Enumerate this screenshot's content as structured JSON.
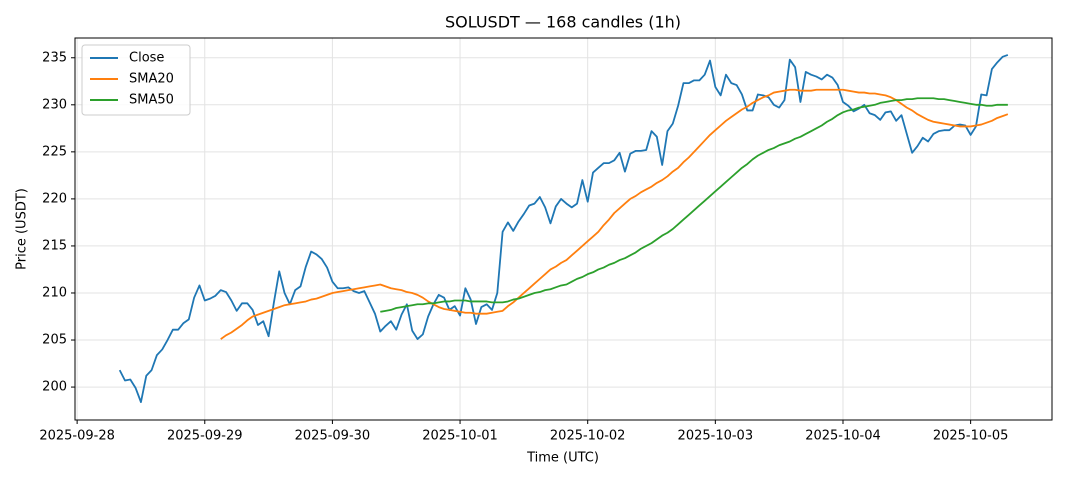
{
  "chart_data": {
    "type": "line",
    "title": "SOLUSDT — 168 candles (1h)",
    "x_label": "Time (UTC)",
    "y_label": "Price (USDT)",
    "xlim": [
      -8.4,
      175.3
    ],
    "xticks": [
      {
        "value": -8,
        "label": "2025-09-28"
      },
      {
        "value": 16,
        "label": "2025-09-29"
      },
      {
        "value": 40,
        "label": "2025-09-30"
      },
      {
        "value": 64,
        "label": "2025-10-01"
      },
      {
        "value": 88,
        "label": "2025-10-02"
      },
      {
        "value": 112,
        "label": "2025-10-03"
      },
      {
        "value": 136,
        "label": "2025-10-04"
      },
      {
        "value": 160,
        "label": "2025-10-05"
      }
    ],
    "ylim": [
      196.5,
      237.1
    ],
    "yticks": [
      200,
      205,
      210,
      215,
      220,
      225,
      230,
      235
    ],
    "grid": true,
    "legend": "upper-left",
    "series": [
      {
        "name": "Close",
        "color": "#1f77b4",
        "values": [
          201.8,
          200.7,
          200.8,
          199.9,
          198.4,
          201.2,
          201.8,
          203.4,
          204.0,
          205.0,
          206.1,
          206.1,
          206.8,
          207.2,
          209.5,
          210.8,
          209.2,
          209.4,
          209.7,
          210.3,
          210.1,
          209.2,
          208.1,
          208.9,
          208.9,
          208.2,
          206.6,
          207.0,
          205.4,
          209.0,
          212.3,
          210.0,
          208.8,
          210.3,
          210.7,
          212.8,
          214.4,
          214.1,
          213.6,
          212.7,
          211.2,
          210.5,
          210.5,
          210.6,
          210.2,
          210.0,
          210.2,
          209.0,
          207.8,
          205.9,
          206.5,
          207.0,
          206.1,
          207.7,
          208.8,
          206.0,
          205.1,
          205.6,
          207.5,
          208.8,
          209.8,
          209.5,
          208.2,
          208.6,
          207.6,
          210.5,
          209.3,
          206.7,
          208.5,
          208.8,
          208.2,
          210.0,
          216.5,
          217.5,
          216.6,
          217.6,
          218.4,
          219.3,
          219.5,
          220.2,
          219.1,
          217.4,
          219.2,
          220.0,
          219.5,
          219.1,
          219.5,
          222.0,
          219.7,
          222.8,
          223.3,
          223.8,
          223.8,
          224.1,
          224.9,
          222.9,
          224.8,
          225.1,
          225.1,
          225.2,
          227.2,
          226.6,
          223.6,
          227.2,
          228.0,
          229.9,
          232.3,
          232.3,
          232.6,
          232.6,
          233.2,
          234.7,
          231.9,
          231.0,
          233.2,
          232.3,
          232.1,
          231.1,
          229.4,
          229.4,
          231.1,
          231.0,
          230.8,
          230.0,
          229.7,
          230.5,
          234.8,
          234.0,
          230.3,
          233.5,
          233.2,
          233.0,
          232.7,
          233.2,
          232.9,
          232.1,
          230.3,
          229.9,
          229.3,
          229.6,
          230.0,
          229.1,
          228.9,
          228.4,
          229.2,
          229.3,
          228.3,
          228.9,
          226.9,
          224.9,
          225.6,
          226.5,
          226.1,
          226.9,
          227.2,
          227.3,
          227.3,
          227.8,
          227.9,
          227.8,
          226.8,
          227.7,
          231.1,
          231.0,
          233.8,
          234.5,
          235.1,
          235.3
        ]
      },
      {
        "name": "SMA20",
        "color": "#ff7f0e",
        "values": [
          null,
          null,
          null,
          null,
          null,
          null,
          null,
          null,
          null,
          null,
          null,
          null,
          null,
          null,
          null,
          null,
          null,
          null,
          null,
          205.1,
          205.5,
          205.8,
          206.2,
          206.6,
          207.1,
          207.5,
          207.7,
          207.9,
          208.1,
          208.3,
          208.5,
          208.7,
          208.8,
          208.9,
          209.0,
          209.1,
          209.3,
          209.4,
          209.6,
          209.8,
          210.0,
          210.1,
          210.2,
          210.3,
          210.4,
          210.5,
          210.6,
          210.7,
          210.8,
          210.9,
          210.7,
          210.5,
          210.4,
          210.3,
          210.1,
          210.0,
          209.8,
          209.5,
          209.1,
          208.8,
          208.5,
          208.3,
          208.2,
          208.1,
          208.0,
          207.9,
          207.9,
          207.8,
          207.8,
          207.8,
          207.9,
          208.0,
          208.1,
          208.6,
          209.0,
          209.5,
          210.0,
          210.5,
          211.0,
          211.5,
          212.0,
          212.5,
          212.8,
          213.2,
          213.5,
          214.0,
          214.5,
          215.0,
          215.5,
          216.0,
          216.5,
          217.2,
          217.8,
          218.5,
          219.0,
          219.5,
          220.0,
          220.3,
          220.7,
          221.0,
          221.3,
          221.7,
          222.0,
          222.4,
          222.9,
          223.3,
          223.9,
          224.4,
          225.0,
          225.6,
          226.2,
          226.8,
          227.3,
          227.8,
          228.3,
          228.7,
          229.1,
          229.5,
          229.8,
          230.2,
          230.5,
          230.8,
          231.0,
          231.3,
          231.4,
          231.5,
          231.6,
          231.6,
          231.5,
          231.5,
          231.5,
          231.6,
          231.6,
          231.6,
          231.6,
          231.6,
          231.6,
          231.5,
          231.4,
          231.3,
          231.3,
          231.2,
          231.2,
          231.1,
          231.0,
          230.8,
          230.5,
          230.1,
          229.7,
          229.4,
          229.0,
          228.7,
          228.4,
          228.2,
          228.1,
          228.0,
          227.9,
          227.8,
          227.7,
          227.7,
          227.7,
          227.8,
          227.9,
          228.1,
          228.3,
          228.6,
          228.8,
          229.0
        ]
      },
      {
        "name": "SMA50",
        "color": "#2ca02c",
        "values": [
          null,
          null,
          null,
          null,
          null,
          null,
          null,
          null,
          null,
          null,
          null,
          null,
          null,
          null,
          null,
          null,
          null,
          null,
          null,
          null,
          null,
          null,
          null,
          null,
          null,
          null,
          null,
          null,
          null,
          null,
          null,
          null,
          null,
          null,
          null,
          null,
          null,
          null,
          null,
          null,
          null,
          null,
          null,
          null,
          null,
          null,
          null,
          null,
          null,
          208.0,
          208.1,
          208.2,
          208.4,
          208.5,
          208.6,
          208.7,
          208.8,
          208.8,
          208.9,
          208.9,
          209.0,
          209.1,
          209.1,
          209.2,
          209.2,
          209.2,
          209.1,
          209.1,
          209.1,
          209.1,
          209.0,
          209.0,
          209.0,
          209.1,
          209.3,
          209.4,
          209.6,
          209.8,
          210.0,
          210.1,
          210.3,
          210.4,
          210.6,
          210.8,
          210.9,
          211.2,
          211.5,
          211.7,
          212.0,
          212.2,
          212.5,
          212.7,
          213.0,
          213.2,
          213.5,
          213.7,
          214.0,
          214.3,
          214.7,
          215.0,
          215.3,
          215.7,
          216.1,
          216.4,
          216.8,
          217.3,
          217.8,
          218.3,
          218.8,
          219.3,
          219.8,
          220.3,
          220.8,
          221.3,
          221.8,
          222.3,
          222.8,
          223.3,
          223.7,
          224.2,
          224.6,
          224.9,
          225.2,
          225.4,
          225.7,
          225.9,
          226.1,
          226.4,
          226.6,
          226.9,
          227.2,
          227.5,
          227.8,
          228.2,
          228.5,
          228.9,
          229.2,
          229.4,
          229.5,
          229.7,
          229.8,
          229.9,
          230.0,
          230.2,
          230.3,
          230.4,
          230.5,
          230.5,
          230.6,
          230.6,
          230.7,
          230.7,
          230.7,
          230.7,
          230.6,
          230.6,
          230.5,
          230.4,
          230.3,
          230.2,
          230.1,
          230.0,
          230.0,
          229.9,
          229.9,
          230.0,
          230.0,
          230.0
        ]
      }
    ]
  }
}
